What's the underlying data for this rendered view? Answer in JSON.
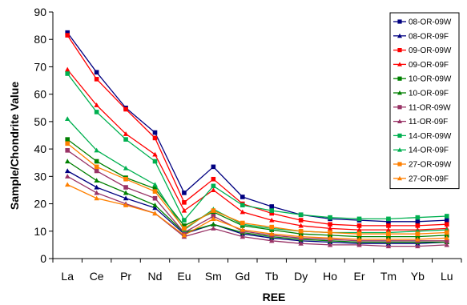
{
  "chart_data": {
    "type": "line",
    "xlabel": "REE",
    "ylabel": "Sample/Chondrite Value",
    "ylim": [
      0,
      90
    ],
    "yticks": [
      0,
      10,
      20,
      30,
      40,
      50,
      60,
      70,
      80,
      90
    ],
    "grid": false,
    "legend_position": "top-right",
    "categories": [
      "La",
      "Ce",
      "Pr",
      "Nd",
      "Eu",
      "Sm",
      "Gd",
      "Tb",
      "Dy",
      "Ho",
      "Er",
      "Tm",
      "Yb",
      "Lu"
    ],
    "series": [
      {
        "name": "08-OR-09W",
        "color": "#000080",
        "marker": "square",
        "values": [
          82.5,
          68,
          55,
          46,
          24,
          33.5,
          22.5,
          19,
          16,
          14.5,
          14,
          13.5,
          13.5,
          14
        ]
      },
      {
        "name": "08-OR-09F",
        "color": "#000080",
        "marker": "triangle",
        "values": [
          32,
          26,
          22,
          18.5,
          9,
          12.5,
          9,
          7.5,
          6.5,
          6,
          5.5,
          5.5,
          5.5,
          6
        ]
      },
      {
        "name": "09-OR-09W",
        "color": "#ff0000",
        "marker": "square",
        "values": [
          81.5,
          65.5,
          54.5,
          44,
          20.5,
          29,
          20,
          16.5,
          14,
          12.5,
          12,
          12,
          12,
          12.5
        ]
      },
      {
        "name": "09-OR-09F",
        "color": "#ff0000",
        "marker": "triangle",
        "values": [
          69,
          56,
          45.5,
          38,
          17.5,
          25,
          17,
          14,
          12,
          11,
          10.5,
          10.5,
          10.5,
          11
        ]
      },
      {
        "name": "10-OR-09W",
        "color": "#008000",
        "marker": "square",
        "values": [
          43.5,
          35.5,
          29.5,
          25.5,
          12,
          17,
          12,
          10.5,
          9,
          8.5,
          8,
          8,
          8,
          8.5
        ]
      },
      {
        "name": "10-OR-09F",
        "color": "#008000",
        "marker": "triangle",
        "values": [
          35.5,
          28.5,
          24,
          19.5,
          9.5,
          12.5,
          9.5,
          8,
          7,
          6.5,
          6,
          6,
          6,
          6
        ]
      },
      {
        "name": "11-OR-09W",
        "color": "#993366",
        "marker": "square",
        "values": [
          39.5,
          32,
          26,
          22,
          9.5,
          15.5,
          10,
          8.5,
          7.5,
          7,
          6.5,
          6.5,
          6.5,
          6.5
        ]
      },
      {
        "name": "11-OR-09F",
        "color": "#993366",
        "marker": "triangle",
        "values": [
          30,
          24,
          20,
          16.5,
          8,
          11,
          8,
          6.5,
          5.5,
          5,
          5,
          4.5,
          4.5,
          5
        ]
      },
      {
        "name": "14-OR-09W",
        "color": "#00b050",
        "marker": "square",
        "values": [
          67.5,
          53.5,
          43.5,
          35.5,
          14,
          26.5,
          19.5,
          17.5,
          16,
          15,
          14.5,
          14.5,
          15,
          15.5
        ]
      },
      {
        "name": "14-OR-09F",
        "color": "#00b050",
        "marker": "triangle",
        "values": [
          51,
          39.5,
          33,
          27,
          10.5,
          18,
          12.5,
          11,
          10,
          9.5,
          9.5,
          9.5,
          10,
          10.5
        ]
      },
      {
        "name": "27-OR-09W",
        "color": "#ff8000",
        "marker": "square",
        "values": [
          42,
          33.5,
          29,
          24.5,
          11,
          17.5,
          13,
          11.5,
          10,
          9.5,
          9,
          9,
          9,
          9.5
        ]
      },
      {
        "name": "27-OR-09F",
        "color": "#ff8000",
        "marker": "triangle",
        "values": [
          27,
          22,
          19.5,
          16.5,
          8.5,
          14.5,
          10.5,
          9,
          8,
          7.5,
          7,
          7,
          7,
          7.5
        ]
      }
    ]
  }
}
